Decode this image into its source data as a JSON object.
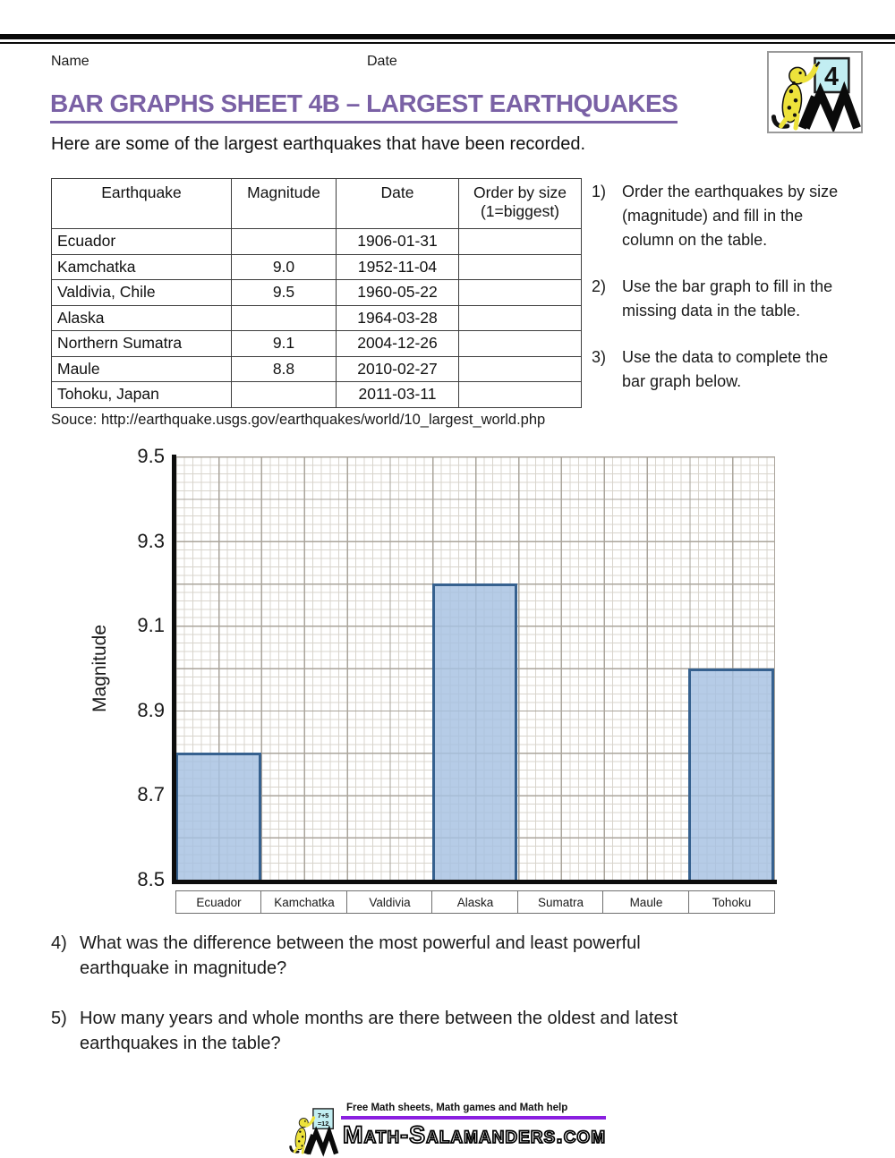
{
  "header": {
    "name_label": "Name",
    "date_label": "Date",
    "corner_badge": "4"
  },
  "title": "BAR GRAPHS SHEET 4B – LARGEST EARTHQUAKES",
  "intro": "Here are some of the largest earthquakes that have been recorded.",
  "table": {
    "col_headers": {
      "earthquake": "Earthquake",
      "magnitude": "Magnitude",
      "date": "Date",
      "order_line1": "Order by size",
      "order_line2": "(1=biggest)"
    },
    "rows": [
      {
        "name": "Ecuador",
        "magnitude": "",
        "date": "1906-01-31",
        "order": ""
      },
      {
        "name": "Kamchatka",
        "magnitude": "9.0",
        "date": "1952-11-04",
        "order": ""
      },
      {
        "name": "Valdivia, Chile",
        "magnitude": "9.5",
        "date": "1960-05-22",
        "order": ""
      },
      {
        "name": "Alaska",
        "magnitude": "",
        "date": "1964-03-28",
        "order": ""
      },
      {
        "name": "Northern Sumatra",
        "magnitude": "9.1",
        "date": "2004-12-26",
        "order": ""
      },
      {
        "name": "Maule",
        "magnitude": "8.8",
        "date": "2010-02-27",
        "order": ""
      },
      {
        "name": "Tohoku, Japan",
        "magnitude": "",
        "date": "2011-03-11",
        "order": ""
      }
    ]
  },
  "instructions": [
    {
      "num": "1)",
      "text": "Order the earthquakes by size (magnitude) and fill in the column on the table."
    },
    {
      "num": "2)",
      "text": "Use the bar graph to fill in the missing data in the table."
    },
    {
      "num": "3)",
      "text": "Use the data to complete the bar graph below."
    }
  ],
  "source_line": "Souce: http://earthquake.usgs.gov/earthquakes/world/10_largest_world.php",
  "chart_data": {
    "type": "bar",
    "title": "",
    "xlabel": "",
    "ylabel": "Magnitude",
    "categories": [
      "Ecuador",
      "Kamchatka",
      "Valdivia",
      "Alaska",
      "Sumatra",
      "Maule",
      "Tohoku"
    ],
    "values": [
      8.8,
      null,
      null,
      9.2,
      null,
      null,
      9.0
    ],
    "ylim": [
      8.5,
      9.5
    ],
    "ytick_labels": [
      "9.5",
      "9.3",
      "9.1",
      "8.9",
      "8.7",
      "8.5"
    ],
    "grid": "graph paper: minor step 0.02, major step 0.1",
    "legend": "none",
    "bar_fill": "#a6c1e2",
    "bar_border": "#36618f",
    "note": "bars drawn only for Ecuador (8.8), Alaska (9.2), Tohoku (9.0); other bars left blank for the student"
  },
  "questions": [
    {
      "num": "4)",
      "text": "What was the difference between the most powerful and least powerful earthquake in magnitude?"
    },
    {
      "num": "5)",
      "text": "How many years and whole months are there between the oldest and latest earthquakes in the table?"
    }
  ],
  "footer": {
    "tagline": "Free Math sheets, Math games and Math help",
    "site": "Math-Salamanders.com",
    "badge_line1": "7+5",
    "badge_line2": "=12",
    "accent_color": "#8a1fe0"
  },
  "colors": {
    "title_purple": "#7a61a5",
    "grid_minor": "#d8d4cc",
    "grid_major": "#aaa49b",
    "axis_black": "#0d0d0d"
  }
}
